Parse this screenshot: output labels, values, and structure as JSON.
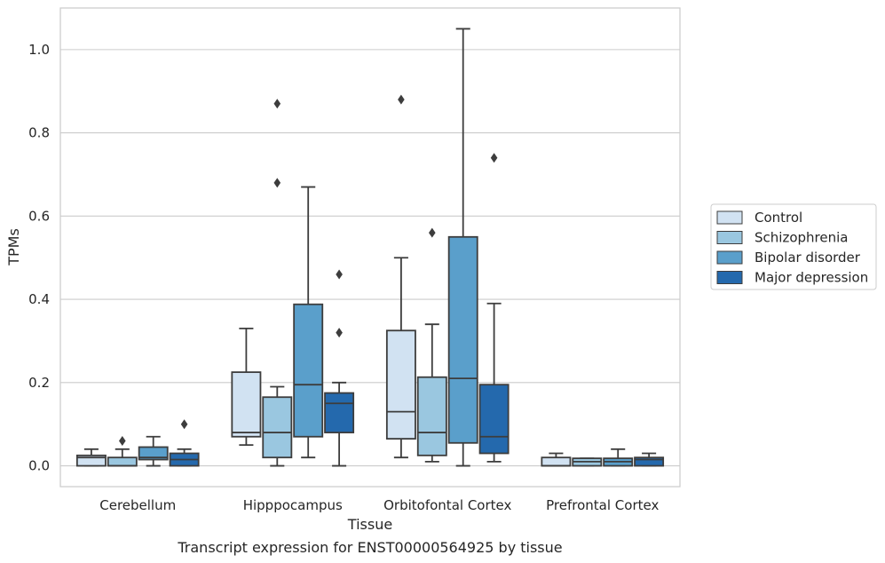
{
  "chart_data": {
    "type": "box",
    "xlabel": "Tissue",
    "ylabel": "TPMs",
    "caption": "Transcript expression for ENST00000564925 by tissue",
    "ylim": [
      -0.05,
      1.1
    ],
    "yticks": [
      0.0,
      0.2,
      0.4,
      0.6,
      0.8,
      1.0
    ],
    "ytick_labels": [
      "0.0",
      "0.2",
      "0.4",
      "0.6",
      "0.8",
      "1.0"
    ],
    "grid": "horizontal",
    "legend_position": "right",
    "categories": [
      "Cerebellum",
      "Hipppocampus",
      "Orbitofontal Cortex",
      "Prefrontal Cortex"
    ],
    "series": [
      {
        "name": "Control",
        "color": "#d1e2f2",
        "boxes": [
          {
            "q1": 0.0,
            "median": 0.02,
            "q3": 0.025,
            "whisker_low": 0.0,
            "whisker_high": 0.04,
            "outliers": []
          },
          {
            "q1": 0.07,
            "median": 0.08,
            "q3": 0.225,
            "whisker_low": 0.05,
            "whisker_high": 0.33,
            "outliers": []
          },
          {
            "q1": 0.065,
            "median": 0.13,
            "q3": 0.325,
            "whisker_low": 0.02,
            "whisker_high": 0.5,
            "outliers": [
              0.88
            ]
          },
          {
            "q1": 0.0,
            "median": 0.0,
            "q3": 0.02,
            "whisker_low": 0.0,
            "whisker_high": 0.03,
            "outliers": []
          }
        ]
      },
      {
        "name": "Schizophrenia",
        "color": "#9ac7e0",
        "boxes": [
          {
            "q1": 0.0,
            "median": 0.0,
            "q3": 0.02,
            "whisker_low": 0.0,
            "whisker_high": 0.04,
            "outliers": [
              0.06
            ]
          },
          {
            "q1": 0.02,
            "median": 0.08,
            "q3": 0.165,
            "whisker_low": 0.0,
            "whisker_high": 0.19,
            "outliers": [
              0.68,
              0.87
            ]
          },
          {
            "q1": 0.025,
            "median": 0.08,
            "q3": 0.213,
            "whisker_low": 0.01,
            "whisker_high": 0.34,
            "outliers": [
              0.56
            ]
          },
          {
            "q1": 0.0,
            "median": 0.01,
            "q3": 0.018,
            "whisker_low": 0.0,
            "whisker_high": 0.018,
            "outliers": []
          }
        ]
      },
      {
        "name": "Bipolar disorder",
        "color": "#5a9fcb",
        "boxes": [
          {
            "q1": 0.015,
            "median": 0.02,
            "q3": 0.045,
            "whisker_low": 0.0,
            "whisker_high": 0.07,
            "outliers": []
          },
          {
            "q1": 0.07,
            "median": 0.195,
            "q3": 0.388,
            "whisker_low": 0.02,
            "whisker_high": 0.67,
            "outliers": []
          },
          {
            "q1": 0.055,
            "median": 0.21,
            "q3": 0.55,
            "whisker_low": 0.0,
            "whisker_high": 1.05,
            "outliers": []
          },
          {
            "q1": 0.0,
            "median": 0.01,
            "q3": 0.018,
            "whisker_low": 0.0,
            "whisker_high": 0.04,
            "outliers": []
          }
        ]
      },
      {
        "name": "Major depression",
        "color": "#2469ad",
        "boxes": [
          {
            "q1": 0.0,
            "median": 0.015,
            "q3": 0.03,
            "whisker_low": 0.0,
            "whisker_high": 0.04,
            "outliers": [
              0.1
            ]
          },
          {
            "q1": 0.08,
            "median": 0.15,
            "q3": 0.175,
            "whisker_low": 0.0,
            "whisker_high": 0.2,
            "outliers": [
              0.32,
              0.46
            ]
          },
          {
            "q1": 0.03,
            "median": 0.07,
            "q3": 0.195,
            "whisker_low": 0.01,
            "whisker_high": 0.39,
            "outliers": [
              0.74
            ]
          },
          {
            "q1": 0.0,
            "median": 0.015,
            "q3": 0.02,
            "whisker_low": 0.0,
            "whisker_high": 0.03,
            "outliers": []
          }
        ]
      }
    ]
  }
}
